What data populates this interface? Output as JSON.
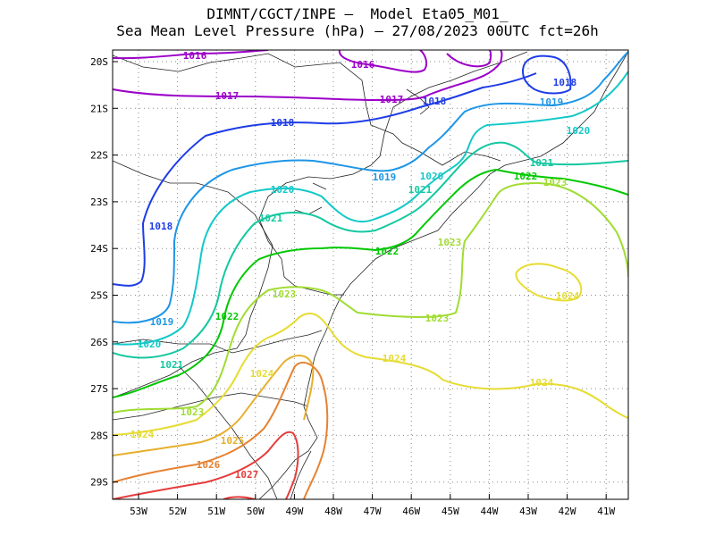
{
  "title": {
    "line1": "DIMNT/CGCT/INPE –  Model Eta05_M01_",
    "line2": "Sea Mean Level Pressure (hPa) – 27/08/2023 00UTC fct=26h"
  },
  "axes": {
    "lat_labels": [
      "20S",
      "21S",
      "22S",
      "23S",
      "24S",
      "25S",
      "26S",
      "27S",
      "28S",
      "29S"
    ],
    "lon_labels": [
      "53W",
      "52W",
      "51W",
      "50W",
      "49W",
      "48W",
      "47W",
      "46W",
      "45W",
      "44W",
      "43W",
      "42W",
      "41W"
    ]
  },
  "contours": [
    {
      "level": "1016",
      "label": "1016",
      "color": "#9b00c8"
    },
    {
      "level": "1017",
      "label": "1017",
      "color": "#9b00c8"
    },
    {
      "level": "1018",
      "label": "1018",
      "color": "#1e3ce6"
    },
    {
      "level": "1019",
      "label": "1019",
      "color": "#1e96e6"
    },
    {
      "level": "1020",
      "label": "1020",
      "color": "#14c8c8"
    },
    {
      "level": "1021",
      "label": "1021",
      "color": "#14c8a0"
    },
    {
      "level": "1022",
      "label": "1022",
      "color": "#00c800"
    },
    {
      "level": "1023",
      "label": "1023",
      "color": "#a0dc32"
    },
    {
      "level": "1024",
      "label": "1024",
      "color": "#e6dc32"
    },
    {
      "level": "1025",
      "label": "1025",
      "color": "#e6af2d"
    },
    {
      "level": "1026",
      "label": "1026",
      "color": "#e68232"
    },
    {
      "level": "1027",
      "label": "1027",
      "color": "#e63c3c"
    }
  ]
}
